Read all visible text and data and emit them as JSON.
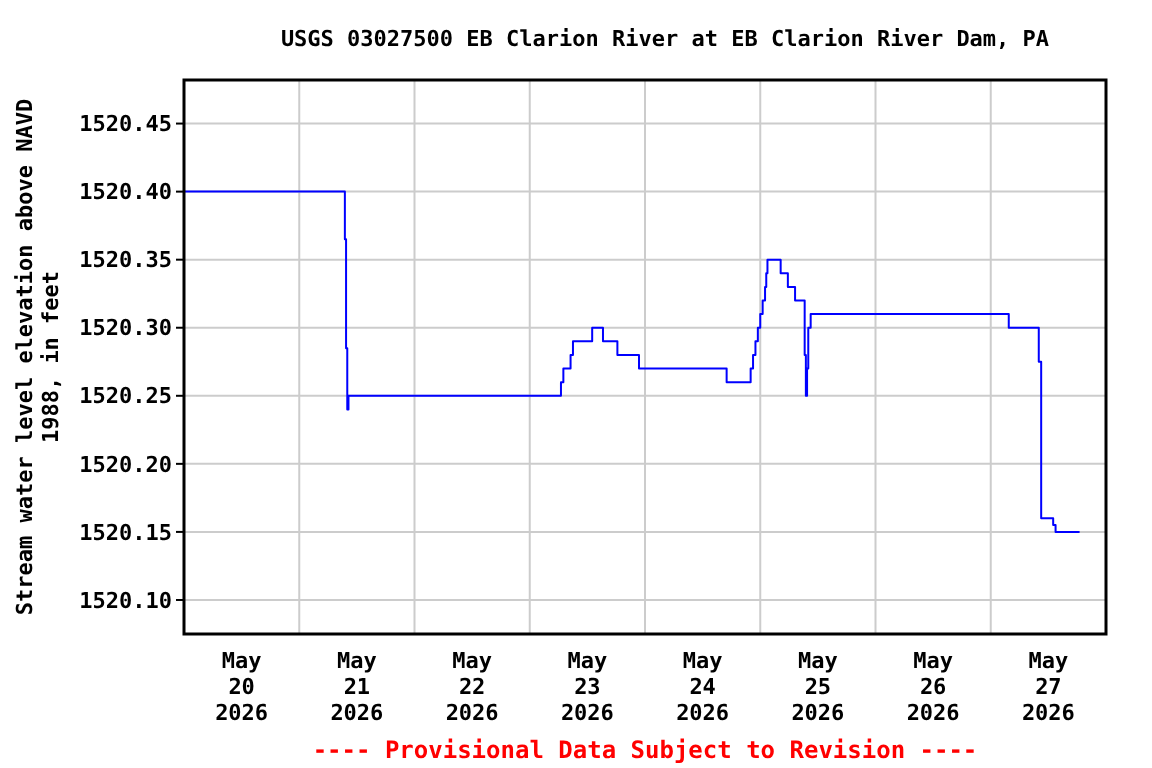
{
  "chart_data": {
    "type": "step",
    "title": "USGS 03027500 EB Clarion River at EB Clarion River Dam, PA",
    "ylabel": "Stream water level elevation above NAVD 1988, in feet",
    "annotations": [
      "---- Provisional Data Subject to Revision ----"
    ],
    "x": [
      "2026-05-20T00:00",
      "2026-05-21T09:15",
      "2026-05-21T09:30",
      "2026-05-21T09:45",
      "2026-05-21T10:00",
      "2026-05-21T10:15",
      "2026-05-23T06:00",
      "2026-05-23T06:30",
      "2026-05-23T07:00",
      "2026-05-23T08:30",
      "2026-05-23T09:00",
      "2026-05-23T13:00",
      "2026-05-23T15:15",
      "2026-05-23T18:15",
      "2026-05-23T22:45",
      "2026-05-24T17:00",
      "2026-05-24T22:00",
      "2026-05-24T22:30",
      "2026-05-24T23:00",
      "2026-05-24T23:30",
      "2026-05-25T00:00",
      "2026-05-25T00:30",
      "2026-05-25T01:00",
      "2026-05-25T01:15",
      "2026-05-25T01:30",
      "2026-05-25T04:15",
      "2026-05-25T05:45",
      "2026-05-25T07:15",
      "2026-05-25T09:15",
      "2026-05-25T09:30",
      "2026-05-25T09:45",
      "2026-05-25T10:00",
      "2026-05-25T10:30",
      "2026-05-27T03:45",
      "2026-05-27T10:00",
      "2026-05-27T10:30",
      "2026-05-27T13:00",
      "2026-05-27T13:30",
      "2026-05-27T18:30"
    ],
    "series": [
      {
        "color": "#0000ff",
        "values": [
          1520.4,
          1520.4,
          1520.365,
          1520.285,
          1520.24,
          1520.25,
          1520.25,
          1520.26,
          1520.27,
          1520.28,
          1520.29,
          1520.3,
          1520.29,
          1520.28,
          1520.27,
          1520.26,
          1520.27,
          1520.28,
          1520.29,
          1520.3,
          1520.31,
          1520.32,
          1520.33,
          1520.34,
          1520.35,
          1520.34,
          1520.33,
          1520.32,
          1520.28,
          1520.25,
          1520.27,
          1520.3,
          1520.31,
          1520.3,
          1520.275,
          1520.16,
          1520.155,
          1520.15,
          1520.15
        ]
      }
    ],
    "xlim": [
      "2026-05-20T00:00",
      "2026-05-28T00:00"
    ],
    "xticks": [
      {
        "value": "2026-05-20T12:00",
        "label": "May 20 2026"
      },
      {
        "value": "2026-05-21T00:00",
        "label": null
      },
      {
        "value": "2026-05-21T12:00",
        "label": "May 21 2026"
      },
      {
        "value": "2026-05-22T00:00",
        "label": null
      },
      {
        "value": "2026-05-22T12:00",
        "label": "May 22 2026"
      },
      {
        "value": "2026-05-23T00:00",
        "label": null
      },
      {
        "value": "2026-05-23T12:00",
        "label": "May 23 2026"
      },
      {
        "value": "2026-05-24T00:00",
        "label": null
      },
      {
        "value": "2026-05-24T12:00",
        "label": "May 24 2026"
      },
      {
        "value": "2026-05-25T00:00",
        "label": null
      },
      {
        "value": "2026-05-25T12:00",
        "label": "May 25 2026"
      },
      {
        "value": "2026-05-26T00:00",
        "label": null
      },
      {
        "value": "2026-05-26T12:00",
        "label": "May 26 2026"
      },
      {
        "value": "2026-05-27T00:00",
        "label": null
      },
      {
        "value": "2026-05-27T12:00",
        "label": "May 27 2026"
      }
    ],
    "ylim": [
      1520.075,
      1520.482
    ],
    "yticks": [
      {
        "value": 1520.1,
        "label": "1520.10"
      },
      {
        "value": 1520.15,
        "label": "1520.15"
      },
      {
        "value": 1520.2,
        "label": "1520.20"
      },
      {
        "value": 1520.25,
        "label": "1520.25"
      },
      {
        "value": 1520.3,
        "label": "1520.30"
      },
      {
        "value": 1520.35,
        "label": "1520.35"
      },
      {
        "value": 1520.4,
        "label": "1520.40"
      },
      {
        "value": 1520.45,
        "label": "1520.45"
      }
    ],
    "grid": true,
    "line_style": "solid"
  }
}
